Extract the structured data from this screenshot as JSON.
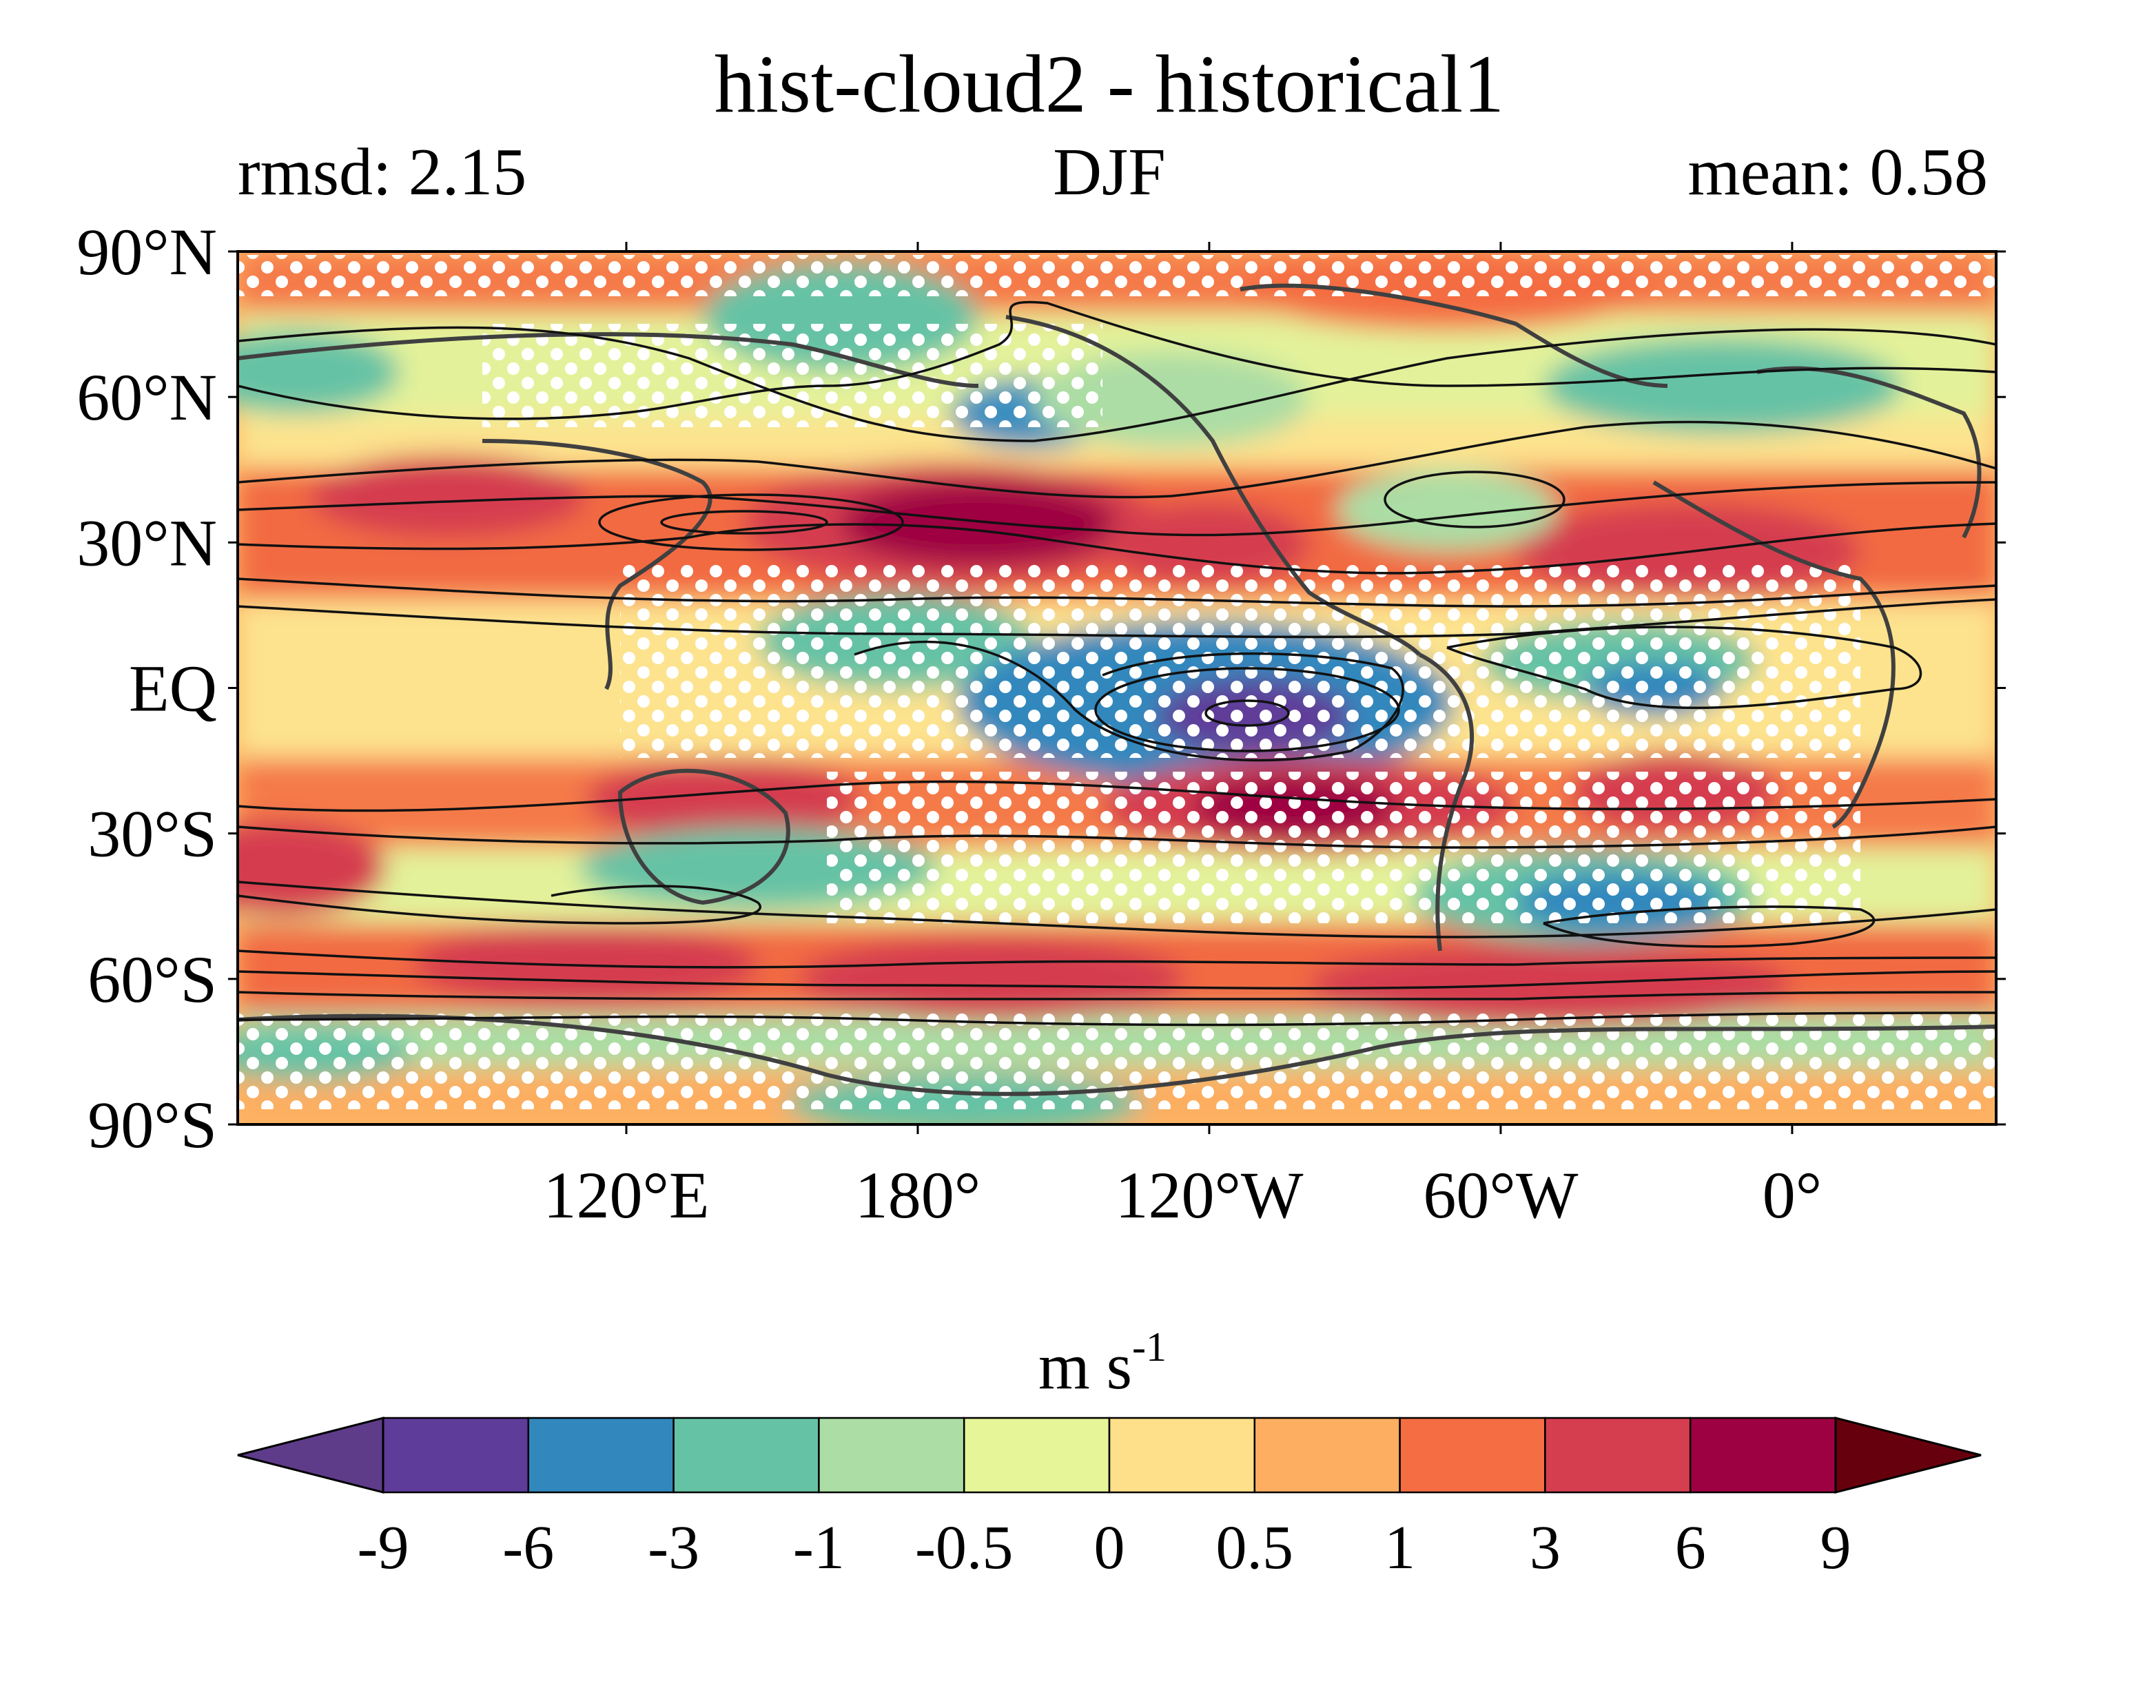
{
  "header": {
    "title": "hist-cloud2 - historical1",
    "left_label": "rmsd: 2.15",
    "center_label": "DJF",
    "right_label": "mean: 0.58"
  },
  "map": {
    "y_ticks": [
      {
        "lat": 90,
        "label": "90°N"
      },
      {
        "lat": 60,
        "label": "60°N"
      },
      {
        "lat": 30,
        "label": "30°N"
      },
      {
        "lat": 0,
        "label": "EQ"
      },
      {
        "lat": -30,
        "label": "30°S"
      },
      {
        "lat": -60,
        "label": "60°S"
      },
      {
        "lat": -90,
        "label": "90°S"
      }
    ],
    "x_ticks": [
      {
        "lon": 120,
        "label": "120°E"
      },
      {
        "lon": 180,
        "label": "180°"
      },
      {
        "lon": 240,
        "label": "120°W"
      },
      {
        "lon": 300,
        "label": "60°W"
      },
      {
        "lon": 360,
        "label": "0°"
      }
    ],
    "lon_range": [
      40,
      402
    ],
    "lat_range": [
      -90,
      90
    ]
  },
  "colorbar": {
    "units_main": "m s",
    "units_sup": "-1",
    "ticks": [
      "-9",
      "-6",
      "-3",
      "-1",
      "-0.5",
      "0",
      "0.5",
      "1",
      "3",
      "6",
      "9"
    ],
    "colors": [
      "#5e3c99",
      "#3288bd",
      "#66c2a5",
      "#abdda4",
      "#e6f598",
      "#fee08b",
      "#fdae61",
      "#f46d43",
      "#d53e4f",
      "#9e0142"
    ],
    "under_color": "#5e3c8a",
    "over_color": "#67000d"
  }
}
